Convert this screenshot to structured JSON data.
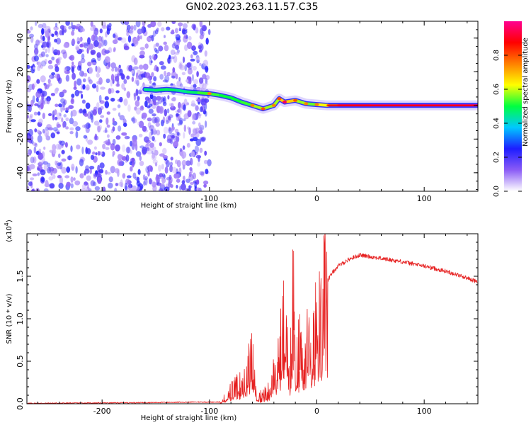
{
  "figure_title": "GN02.2023.263.11.57.C35",
  "chart_data": [
    {
      "type": "heatmap",
      "title": "GN02.2023.263.11.57.C35",
      "xlabel": "Height of straight line (km)",
      "ylabel": "Frequency (Hz)",
      "xlim": [
        -270,
        150
      ],
      "ylim": [
        -51,
        50
      ],
      "x_ticks": [
        -200,
        -100,
        0,
        100
      ],
      "y_ticks": [
        -40,
        -20,
        0,
        20,
        40
      ],
      "colorbar": {
        "label": "Normalized spectral amplitude",
        "range": [
          0.0,
          1.0
        ],
        "ticks": [
          0.0,
          0.2,
          0.4,
          0.6,
          0.8
        ],
        "colors": [
          "#ffffff",
          "#8b5cf6",
          "#1d1dff",
          "#00c8ff",
          "#00ff40",
          "#ffff00",
          "#ff8000",
          "#ff0000",
          "#ff0090"
        ]
      },
      "noise_region": {
        "x_range": [
          -270,
          -100
        ],
        "y_range": [
          -51,
          50
        ],
        "amplitude_range": [
          0.05,
          0.25
        ]
      },
      "signal_track": [
        {
          "x": -160,
          "y": 9.5,
          "a": 0.45
        },
        {
          "x": -150,
          "y": 9.0,
          "a": 0.45
        },
        {
          "x": -140,
          "y": 9.5,
          "a": 0.5
        },
        {
          "x": -130,
          "y": 9.0,
          "a": 0.45
        },
        {
          "x": -120,
          "y": 8.0,
          "a": 0.45
        },
        {
          "x": -110,
          "y": 7.5,
          "a": 0.5
        },
        {
          "x": -100,
          "y": 7.0,
          "a": 0.55
        },
        {
          "x": -90,
          "y": 6.0,
          "a": 0.5
        },
        {
          "x": -80,
          "y": 4.5,
          "a": 0.5
        },
        {
          "x": -70,
          "y": 2.0,
          "a": 0.5
        },
        {
          "x": -60,
          "y": 0.0,
          "a": 0.55
        },
        {
          "x": -50,
          "y": -2.0,
          "a": 0.6
        },
        {
          "x": -40,
          "y": 0.0,
          "a": 0.55
        },
        {
          "x": -35,
          "y": 4.0,
          "a": 0.6
        },
        {
          "x": -30,
          "y": 2.0,
          "a": 0.75
        },
        {
          "x": -20,
          "y": 3.0,
          "a": 0.6
        },
        {
          "x": -10,
          "y": 1.0,
          "a": 0.55
        },
        {
          "x": 0,
          "y": 0.5,
          "a": 0.55
        },
        {
          "x": 10,
          "y": 0.0,
          "a": 0.7
        },
        {
          "x": 20,
          "y": 0.0,
          "a": 0.9
        },
        {
          "x": 50,
          "y": 0.0,
          "a": 0.95
        },
        {
          "x": 100,
          "y": 0.0,
          "a": 0.95
        },
        {
          "x": 150,
          "y": 0.0,
          "a": 0.95
        }
      ]
    },
    {
      "type": "line",
      "xlabel": "Height of straight line (km)",
      "ylabel": "SNR (10 * v/v)",
      "y_multiplier": "(x10",
      "y_multiplier_exp": "4",
      "y_multiplier_close": ")",
      "xlim": [
        -270,
        150
      ],
      "ylim": [
        0,
        2.0
      ],
      "x_ticks": [
        -200,
        -100,
        0,
        100
      ],
      "y_ticks": [
        0.0,
        0.5,
        1.0,
        1.5
      ],
      "y_tick_labels": [
        "0.0",
        "0.5",
        "1.0",
        "1.5"
      ],
      "color": "#e62020",
      "x": [
        -270,
        -200,
        -150,
        -110,
        -90,
        -85,
        -70,
        -60,
        -55,
        -45,
        -40,
        -35,
        -30,
        -25,
        -22,
        -20,
        -15,
        -10,
        -5,
        0,
        5,
        10,
        15,
        20,
        30,
        40,
        45,
        50,
        60,
        80,
        100,
        120,
        140,
        150
      ],
      "values": [
        0.005,
        0.01,
        0.015,
        0.02,
        0.02,
        0.08,
        0.25,
        0.55,
        0.05,
        0.15,
        0.35,
        0.6,
        1.05,
        0.2,
        1.85,
        0.3,
        0.85,
        0.7,
        0.8,
        1.15,
        1.35,
        1.45,
        1.55,
        1.62,
        1.7,
        1.75,
        1.74,
        1.73,
        1.71,
        1.67,
        1.62,
        1.56,
        1.48,
        1.43
      ]
    }
  ]
}
